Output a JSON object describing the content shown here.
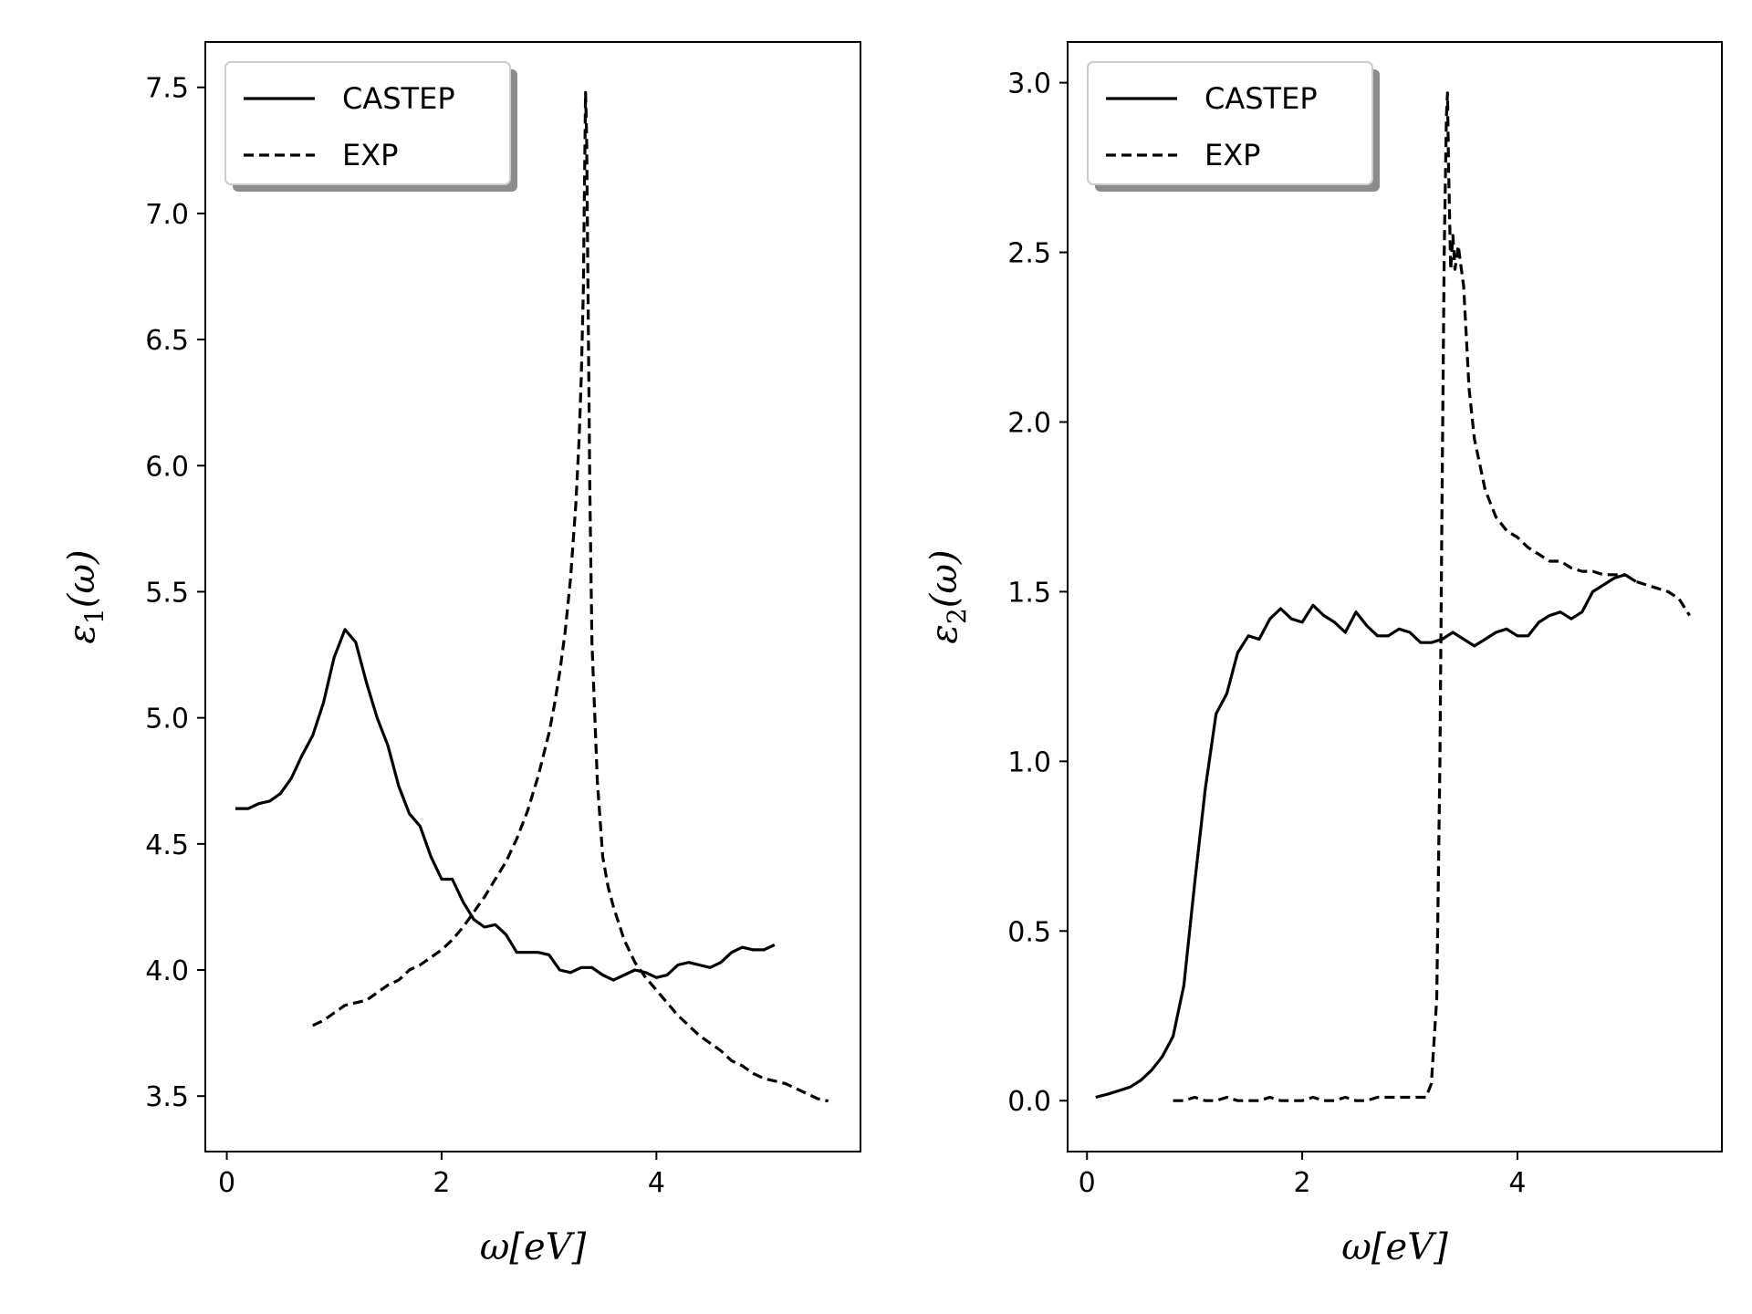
{
  "chart_data": [
    {
      "type": "line",
      "panel": "left",
      "xlabel": "ω[eV]",
      "ylabel_main": "ε",
      "ylabel_sub": "1",
      "ylabel_tail": "(ω)",
      "xlim": [
        -0.2,
        5.9
      ],
      "ylim": [
        3.28,
        7.68
      ],
      "xticks": [
        0,
        2,
        4
      ],
      "yticks": [
        3.5,
        4.0,
        4.5,
        5.0,
        5.5,
        6.0,
        6.5,
        7.0,
        7.5
      ],
      "ytick_labels": [
        "3.5",
        "4.0",
        "4.5",
        "5.0",
        "5.5",
        "6.0",
        "6.5",
        "7.0",
        "7.5"
      ],
      "legend": {
        "position": "upper left",
        "entries": [
          "CASTEP",
          "EXP"
        ]
      },
      "grid": false,
      "series": [
        {
          "name": "CASTEP",
          "style": "solid",
          "x": [
            0.08,
            0.2,
            0.3,
            0.4,
            0.5,
            0.6,
            0.7,
            0.8,
            0.9,
            1.0,
            1.1,
            1.2,
            1.3,
            1.4,
            1.5,
            1.6,
            1.7,
            1.8,
            1.9,
            2.0,
            2.1,
            2.2,
            2.3,
            2.4,
            2.5,
            2.6,
            2.7,
            2.8,
            2.9,
            3.0,
            3.1,
            3.2,
            3.3,
            3.4,
            3.5,
            3.6,
            3.7,
            3.8,
            3.9,
            4.0,
            4.1,
            4.2,
            4.3,
            4.4,
            4.5,
            4.6,
            4.7,
            4.8,
            4.9,
            5.0,
            5.1
          ],
          "y": [
            4.64,
            4.64,
            4.66,
            4.67,
            4.7,
            4.76,
            4.85,
            4.93,
            5.06,
            5.24,
            5.35,
            5.3,
            5.14,
            5.0,
            4.89,
            4.73,
            4.62,
            4.57,
            4.45,
            4.36,
            4.36,
            4.27,
            4.2,
            4.17,
            4.18,
            4.14,
            4.07,
            4.07,
            4.07,
            4.06,
            4.0,
            3.99,
            4.01,
            4.01,
            3.98,
            3.96,
            3.98,
            4.0,
            3.99,
            3.97,
            3.98,
            4.02,
            4.03,
            4.02,
            4.01,
            4.03,
            4.07,
            4.09,
            4.08,
            4.08,
            4.1
          ]
        },
        {
          "name": "EXP",
          "style": "dashed",
          "x": [
            0.8,
            0.9,
            1.0,
            1.1,
            1.2,
            1.3,
            1.4,
            1.5,
            1.6,
            1.7,
            1.8,
            1.9,
            2.0,
            2.1,
            2.2,
            2.3,
            2.4,
            2.5,
            2.6,
            2.7,
            2.8,
            2.9,
            3.0,
            3.05,
            3.1,
            3.15,
            3.2,
            3.25,
            3.28,
            3.3,
            3.32,
            3.33,
            3.34,
            3.35,
            3.36,
            3.38,
            3.4,
            3.45,
            3.5,
            3.55,
            3.6,
            3.7,
            3.8,
            3.9,
            4.0,
            4.1,
            4.2,
            4.3,
            4.4,
            4.5,
            4.6,
            4.7,
            4.8,
            4.9,
            5.0,
            5.1,
            5.2,
            5.3,
            5.4,
            5.5,
            5.6
          ],
          "y": [
            3.78,
            3.8,
            3.83,
            3.86,
            3.87,
            3.88,
            3.91,
            3.94,
            3.96,
            4.0,
            4.02,
            4.05,
            4.08,
            4.12,
            4.17,
            4.23,
            4.29,
            4.36,
            4.43,
            4.52,
            4.63,
            4.77,
            4.94,
            5.05,
            5.18,
            5.34,
            5.55,
            5.85,
            6.1,
            6.35,
            6.7,
            7.1,
            7.48,
            7.3,
            6.85,
            5.9,
            5.3,
            4.75,
            4.45,
            4.33,
            4.25,
            4.12,
            4.03,
            3.97,
            3.92,
            3.87,
            3.82,
            3.78,
            3.74,
            3.71,
            3.68,
            3.64,
            3.62,
            3.59,
            3.57,
            3.56,
            3.55,
            3.53,
            3.51,
            3.49,
            3.48
          ]
        }
      ]
    },
    {
      "type": "line",
      "panel": "right",
      "xlabel": "ω[eV]",
      "ylabel_main": "ε",
      "ylabel_sub": "2",
      "ylabel_tail": "(ω)",
      "xlim": [
        -0.18,
        5.9
      ],
      "ylim": [
        -0.15,
        3.12
      ],
      "xticks": [
        0,
        2,
        4
      ],
      "yticks": [
        0.0,
        0.5,
        1.0,
        1.5,
        2.0,
        2.5,
        3.0
      ],
      "ytick_labels": [
        "0.0",
        "0.5",
        "1.0",
        "1.5",
        "2.0",
        "2.5",
        "3.0"
      ],
      "legend": {
        "position": "upper left",
        "entries": [
          "CASTEP",
          "EXP"
        ]
      },
      "grid": false,
      "series": [
        {
          "name": "CASTEP",
          "style": "solid",
          "x": [
            0.08,
            0.2,
            0.3,
            0.4,
            0.5,
            0.6,
            0.7,
            0.8,
            0.9,
            1.0,
            1.1,
            1.2,
            1.3,
            1.4,
            1.5,
            1.6,
            1.7,
            1.8,
            1.9,
            2.0,
            2.1,
            2.2,
            2.3,
            2.4,
            2.5,
            2.6,
            2.7,
            2.8,
            2.9,
            3.0,
            3.1,
            3.2,
            3.3,
            3.4,
            3.5,
            3.6,
            3.7,
            3.8,
            3.9,
            4.0,
            4.1,
            4.2,
            4.3,
            4.4,
            4.5,
            4.6,
            4.7,
            4.8,
            4.9,
            5.0,
            5.1
          ],
          "y": [
            0.01,
            0.02,
            0.03,
            0.04,
            0.06,
            0.09,
            0.13,
            0.19,
            0.34,
            0.64,
            0.92,
            1.14,
            1.2,
            1.32,
            1.37,
            1.36,
            1.42,
            1.45,
            1.42,
            1.41,
            1.46,
            1.43,
            1.41,
            1.38,
            1.44,
            1.4,
            1.37,
            1.37,
            1.39,
            1.38,
            1.35,
            1.35,
            1.36,
            1.38,
            1.36,
            1.34,
            1.36,
            1.38,
            1.39,
            1.37,
            1.37,
            1.41,
            1.43,
            1.44,
            1.42,
            1.44,
            1.5,
            1.52,
            1.54,
            1.55,
            1.53
          ]
        },
        {
          "name": "EXP",
          "style": "dashed",
          "x": [
            0.8,
            0.9,
            1.0,
            1.1,
            1.2,
            1.3,
            1.4,
            1.5,
            1.6,
            1.7,
            1.8,
            1.9,
            2.0,
            2.1,
            2.2,
            2.3,
            2.4,
            2.5,
            2.6,
            2.7,
            2.8,
            2.9,
            3.0,
            3.1,
            3.15,
            3.2,
            3.25,
            3.28,
            3.3,
            3.32,
            3.34,
            3.35,
            3.36,
            3.38,
            3.4,
            3.42,
            3.45,
            3.5,
            3.55,
            3.6,
            3.7,
            3.8,
            3.9,
            4.0,
            4.1,
            4.2,
            4.3,
            4.4,
            4.5,
            4.6,
            4.7,
            4.8,
            4.9,
            5.0,
            5.1,
            5.2,
            5.3,
            5.4,
            5.5,
            5.6
          ],
          "y": [
            0.0,
            0.0,
            0.01,
            0.0,
            0.0,
            0.01,
            0.0,
            0.0,
            0.0,
            0.01,
            0.0,
            0.0,
            0.0,
            0.01,
            0.0,
            0.0,
            0.01,
            0.0,
            0.0,
            0.01,
            0.01,
            0.01,
            0.01,
            0.01,
            0.01,
            0.05,
            0.3,
            1.0,
            1.8,
            2.5,
            2.9,
            2.97,
            2.75,
            2.45,
            2.55,
            2.45,
            2.52,
            2.4,
            2.1,
            1.95,
            1.8,
            1.72,
            1.68,
            1.66,
            1.63,
            1.61,
            1.59,
            1.59,
            1.57,
            1.56,
            1.56,
            1.55,
            1.55,
            1.55,
            1.53,
            1.52,
            1.51,
            1.5,
            1.48,
            1.43
          ]
        }
      ]
    }
  ]
}
